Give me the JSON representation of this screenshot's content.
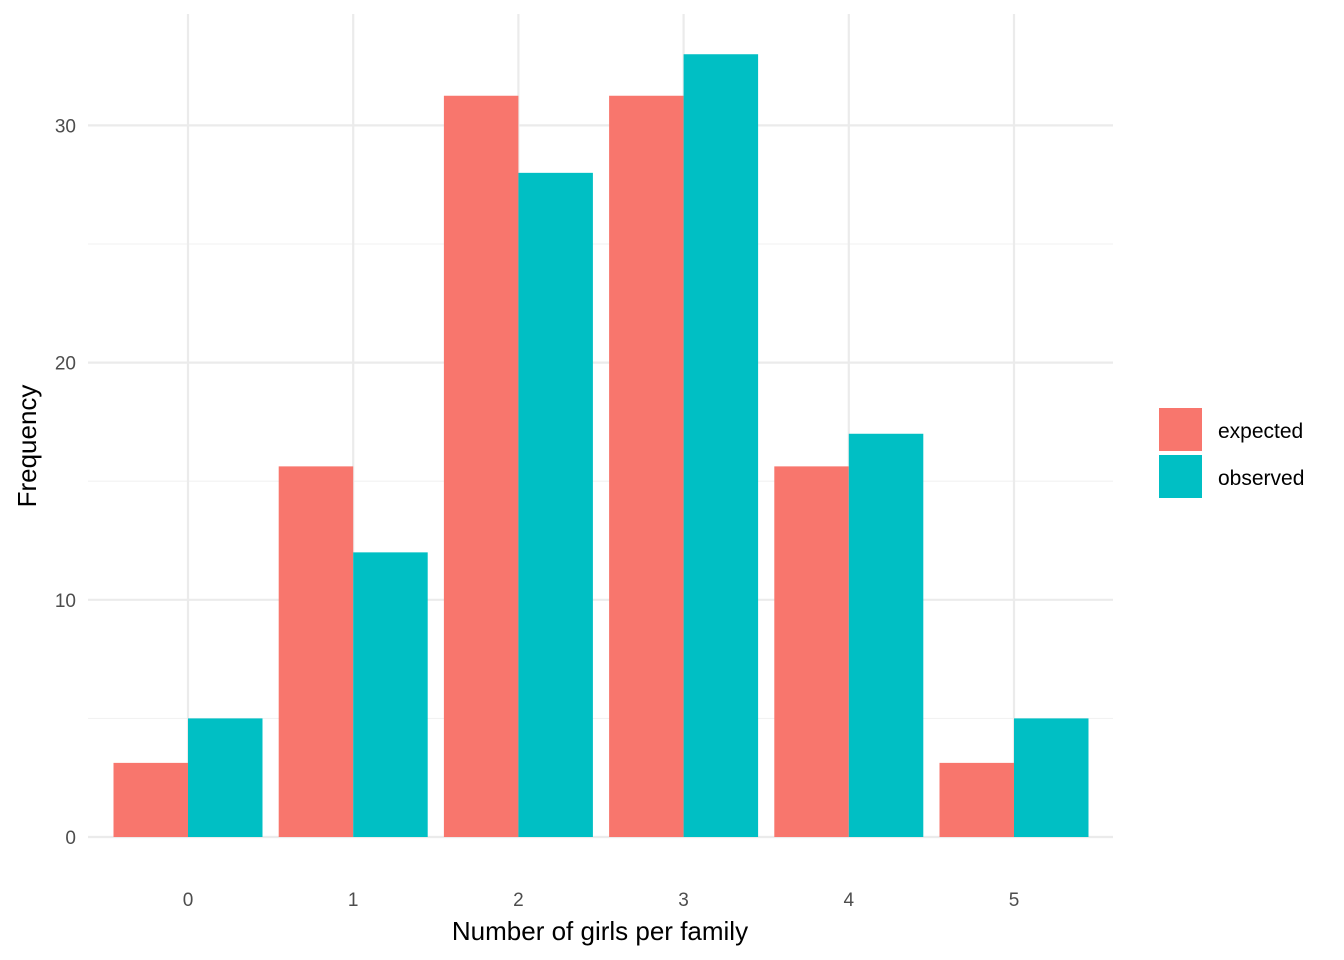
{
  "chart_data": {
    "type": "bar",
    "title": "",
    "xlabel": "Number of girls per family",
    "ylabel": "Frequency",
    "categories": [
      "0",
      "1",
      "2",
      "3",
      "4",
      "5"
    ],
    "series": [
      {
        "name": "expected",
        "color": "#F8766D",
        "values": [
          3.125,
          15.625,
          31.25,
          31.25,
          15.625,
          3.125
        ]
      },
      {
        "name": "observed",
        "color": "#00BFC4",
        "values": [
          5,
          12,
          28,
          33,
          17,
          5
        ]
      }
    ],
    "ylim": [
      0,
      33
    ],
    "yticks": [
      0,
      10,
      20,
      30
    ],
    "grid": true,
    "legend_position": "right"
  }
}
